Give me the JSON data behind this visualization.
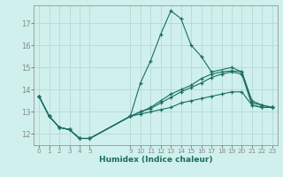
{
  "xlabel": "Humidex (Indice chaleur)",
  "background_color": "#cff0ec",
  "grid_color": "#b8d8d4",
  "line_color": "#1a6e64",
  "lines": [
    {
      "x": [
        0,
        1,
        2,
        3,
        4,
        5,
        9,
        10,
        11,
        12,
        13,
        14,
        15,
        16,
        17,
        19,
        20,
        21,
        22,
        23
      ],
      "y": [
        13.7,
        12.8,
        12.3,
        12.2,
        11.8,
        11.8,
        12.8,
        14.3,
        15.3,
        16.5,
        17.55,
        17.2,
        16.0,
        15.5,
        14.8,
        15.0,
        14.8,
        13.4,
        13.3,
        13.2
      ]
    },
    {
      "x": [
        0,
        1,
        2,
        3,
        4,
        5,
        9,
        10,
        11,
        12,
        13,
        14,
        15,
        16,
        17,
        18,
        19,
        20,
        21,
        22,
        23
      ],
      "y": [
        13.7,
        12.8,
        12.3,
        12.2,
        11.8,
        11.8,
        12.8,
        13.0,
        13.2,
        13.5,
        13.8,
        14.0,
        14.2,
        14.5,
        14.7,
        14.8,
        14.85,
        14.8,
        13.5,
        13.3,
        13.2
      ]
    },
    {
      "x": [
        0,
        1,
        2,
        3,
        4,
        5,
        9,
        10,
        11,
        12,
        13,
        14,
        15,
        16,
        17,
        18,
        19,
        20,
        21,
        22,
        23
      ],
      "y": [
        13.7,
        12.8,
        12.3,
        12.2,
        11.8,
        11.8,
        12.8,
        13.0,
        13.15,
        13.4,
        13.65,
        13.9,
        14.1,
        14.3,
        14.55,
        14.7,
        14.8,
        14.7,
        13.3,
        13.2,
        13.2
      ]
    },
    {
      "x": [
        0,
        1,
        2,
        3,
        4,
        5,
        9,
        10,
        11,
        12,
        13,
        14,
        15,
        16,
        17,
        18,
        19,
        20,
        21,
        22,
        23
      ],
      "y": [
        13.7,
        12.8,
        12.3,
        12.2,
        11.8,
        11.8,
        12.8,
        12.9,
        13.0,
        13.1,
        13.2,
        13.4,
        13.5,
        13.6,
        13.7,
        13.8,
        13.9,
        13.9,
        13.3,
        13.2,
        13.2
      ]
    }
  ],
  "xlim": [
    -0.5,
    23.5
  ],
  "ylim": [
    11.5,
    17.8
  ],
  "yticks": [
    12,
    13,
    14,
    15,
    16,
    17
  ],
  "xticks": [
    0,
    1,
    2,
    3,
    4,
    5,
    9,
    10,
    11,
    12,
    13,
    14,
    15,
    16,
    17,
    18,
    19,
    20,
    21,
    22,
    23
  ],
  "figsize": [
    3.2,
    2.0
  ],
  "dpi": 100
}
